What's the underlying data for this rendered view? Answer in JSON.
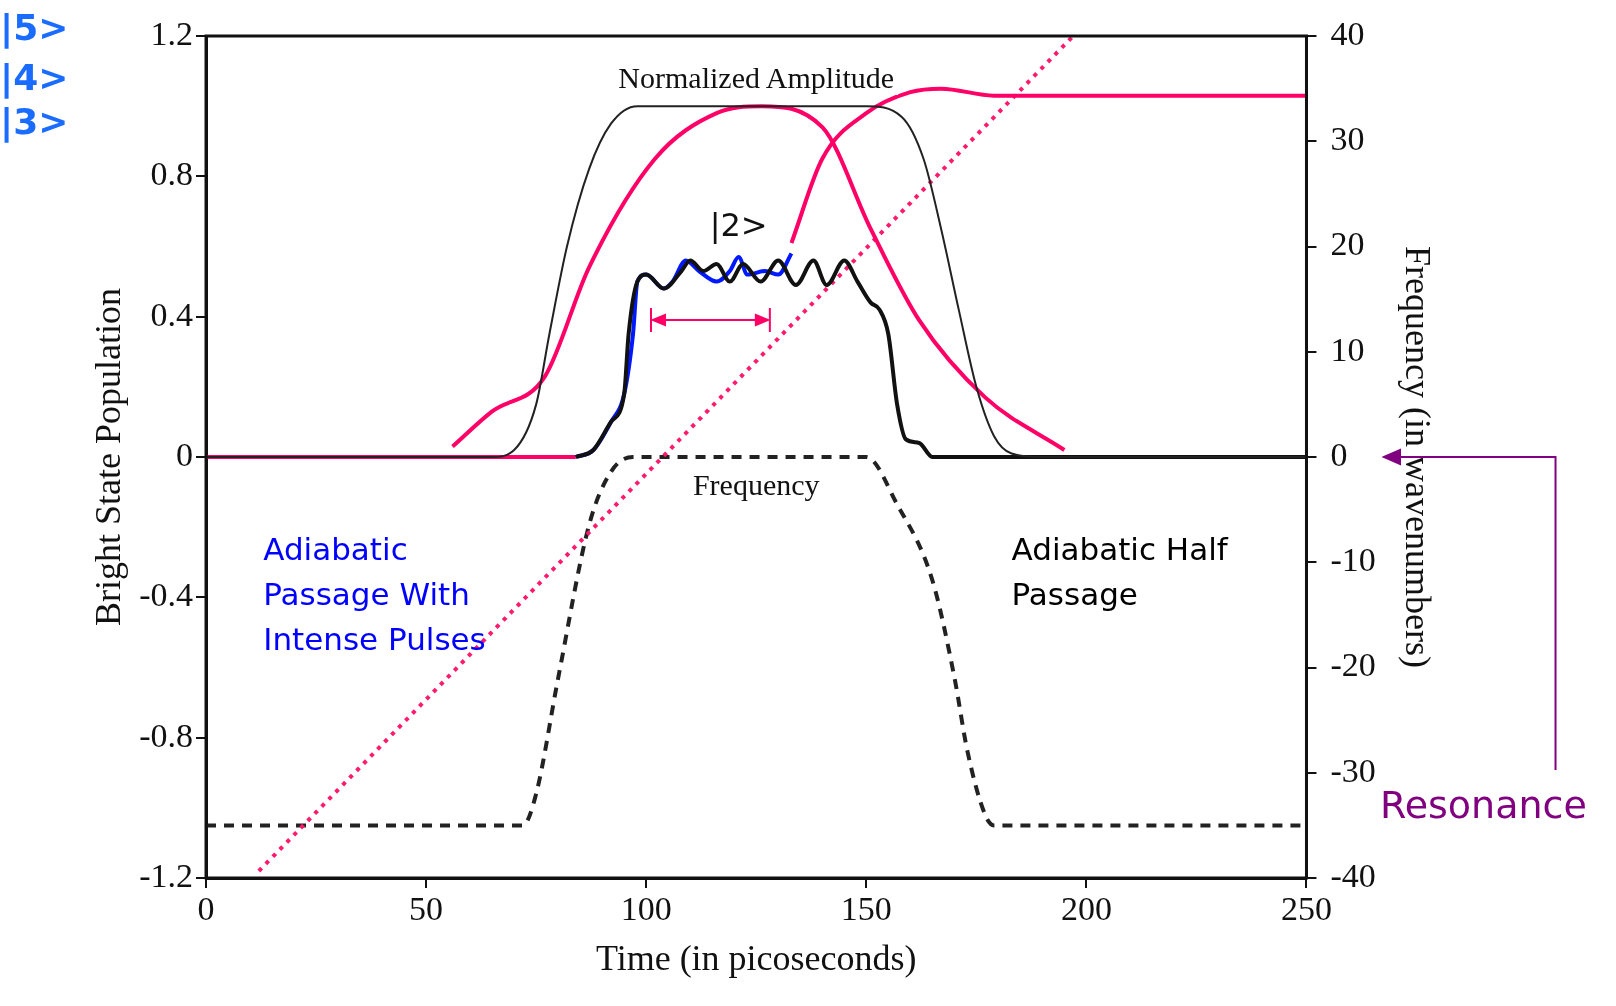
{
  "chart_data": {
    "type": "line",
    "xlabel": "Time (in picoseconds)",
    "ylabel": "Bright State Population",
    "y2label": "Frequency (in wavenumbers)",
    "xlim": [
      0,
      250
    ],
    "xticks": [
      0,
      50,
      100,
      150,
      200,
      250
    ],
    "ylim": [
      -1.2,
      1.2
    ],
    "yticks": [
      -1.2,
      -0.8,
      -0.4,
      0,
      0.4,
      0.8,
      1.2
    ],
    "y2lim": [
      -40,
      40
    ],
    "y2ticks": [
      -40,
      -30,
      -20,
      -10,
      0,
      10,
      20,
      30,
      40
    ],
    "grid": false,
    "legend": false,
    "marker": "none",
    "series": [
      {
        "name": "Normalized Amplitude",
        "color": "#222222",
        "line_style": "solid",
        "x": [
          0,
          65,
          70,
          75,
          78,
          82,
          87,
          92,
          98,
          150,
          158,
          163,
          167,
          171,
          175,
          179,
          183,
          190,
          250
        ],
        "values": [
          0,
          0,
          0.02,
          0.15,
          0.35,
          0.6,
          0.82,
          0.95,
          1.0,
          1.0,
          0.97,
          0.85,
          0.65,
          0.42,
          0.2,
          0.06,
          0.01,
          0,
          0
        ]
      },
      {
        "color": "#111111",
        "line_style": "solid",
        "x": [
          84,
          88,
          92,
          95,
          96,
          98,
          100,
          104,
          108,
          110,
          113,
          116,
          119,
          122,
          126,
          130,
          134,
          138,
          141,
          145,
          148,
          151,
          153,
          155,
          157,
          159,
          162,
          165,
          250
        ],
        "values": [
          0,
          0.02,
          0.1,
          0.18,
          0.35,
          0.5,
          0.52,
          0.48,
          0.53,
          0.56,
          0.53,
          0.55,
          0.5,
          0.55,
          0.5,
          0.56,
          0.49,
          0.56,
          0.49,
          0.56,
          0.5,
          0.44,
          0.42,
          0.35,
          0.15,
          0.05,
          0.04,
          0,
          0
        ]
      },
      {
        "color": "#0018ff",
        "line_style": "solid",
        "x": [
          84,
          88,
          92,
          95,
          97,
          98,
          100,
          104,
          106,
          109,
          112,
          116,
          119,
          121,
          123,
          127,
          130,
          133
        ],
        "values": [
          0,
          0.02,
          0.1,
          0.18,
          0.35,
          0.5,
          0.52,
          0.48,
          0.5,
          0.56,
          0.53,
          0.5,
          0.53,
          0.57,
          0.52,
          0.53,
          0.52,
          0.58
        ]
      },
      {
        "color": "#ff0066",
        "line_style": "solid",
        "x": [
          0,
          84
        ],
        "values": [
          0,
          0
        ]
      },
      {
        "color": "#ff0066",
        "line_style": "solid",
        "x": [
          56,
          65,
          77,
          87,
          102,
          116,
          126,
          140,
          151,
          162,
          177,
          195
        ],
        "values": [
          0.03,
          0.13,
          0.23,
          0.54,
          0.85,
          0.98,
          1.0,
          0.94,
          0.65,
          0.39,
          0.17,
          0.02
        ]
      },
      {
        "color": "#ff0066",
        "line_style": "solid",
        "x": [
          133,
          140,
          150,
          160,
          167,
          179,
          184,
          250
        ],
        "values": [
          0.61,
          0.85,
          0.98,
          1.04,
          1.05,
          1.03,
          1.03,
          1.03
        ]
      },
      {
        "color": "#ff1a6e",
        "line_style": "dotted",
        "x": [
          12,
          197
        ],
        "values": [
          -1.18,
          1.2
        ]
      },
      {
        "name": "Frequency",
        "axis": "y2",
        "color": "#222222",
        "line_style": "dashed",
        "x": [
          0,
          72,
          75,
          80,
          87,
          92,
          97,
          150,
          157,
          165,
          170,
          173,
          177,
          179,
          250
        ],
        "values": [
          -35,
          -35,
          -32,
          -21,
          -6.5,
          -1.4,
          0,
          0,
          -4.5,
          -11.7,
          -20.9,
          -28,
          -34,
          -35,
          -35
        ]
      }
    ],
    "annotations": [
      "|5>",
      "|4>",
      "|3>",
      "|2>",
      "Adiabatic Passage With Intense Pulses",
      "Adiabatic Half Passage",
      "Resonance"
    ]
  }
}
